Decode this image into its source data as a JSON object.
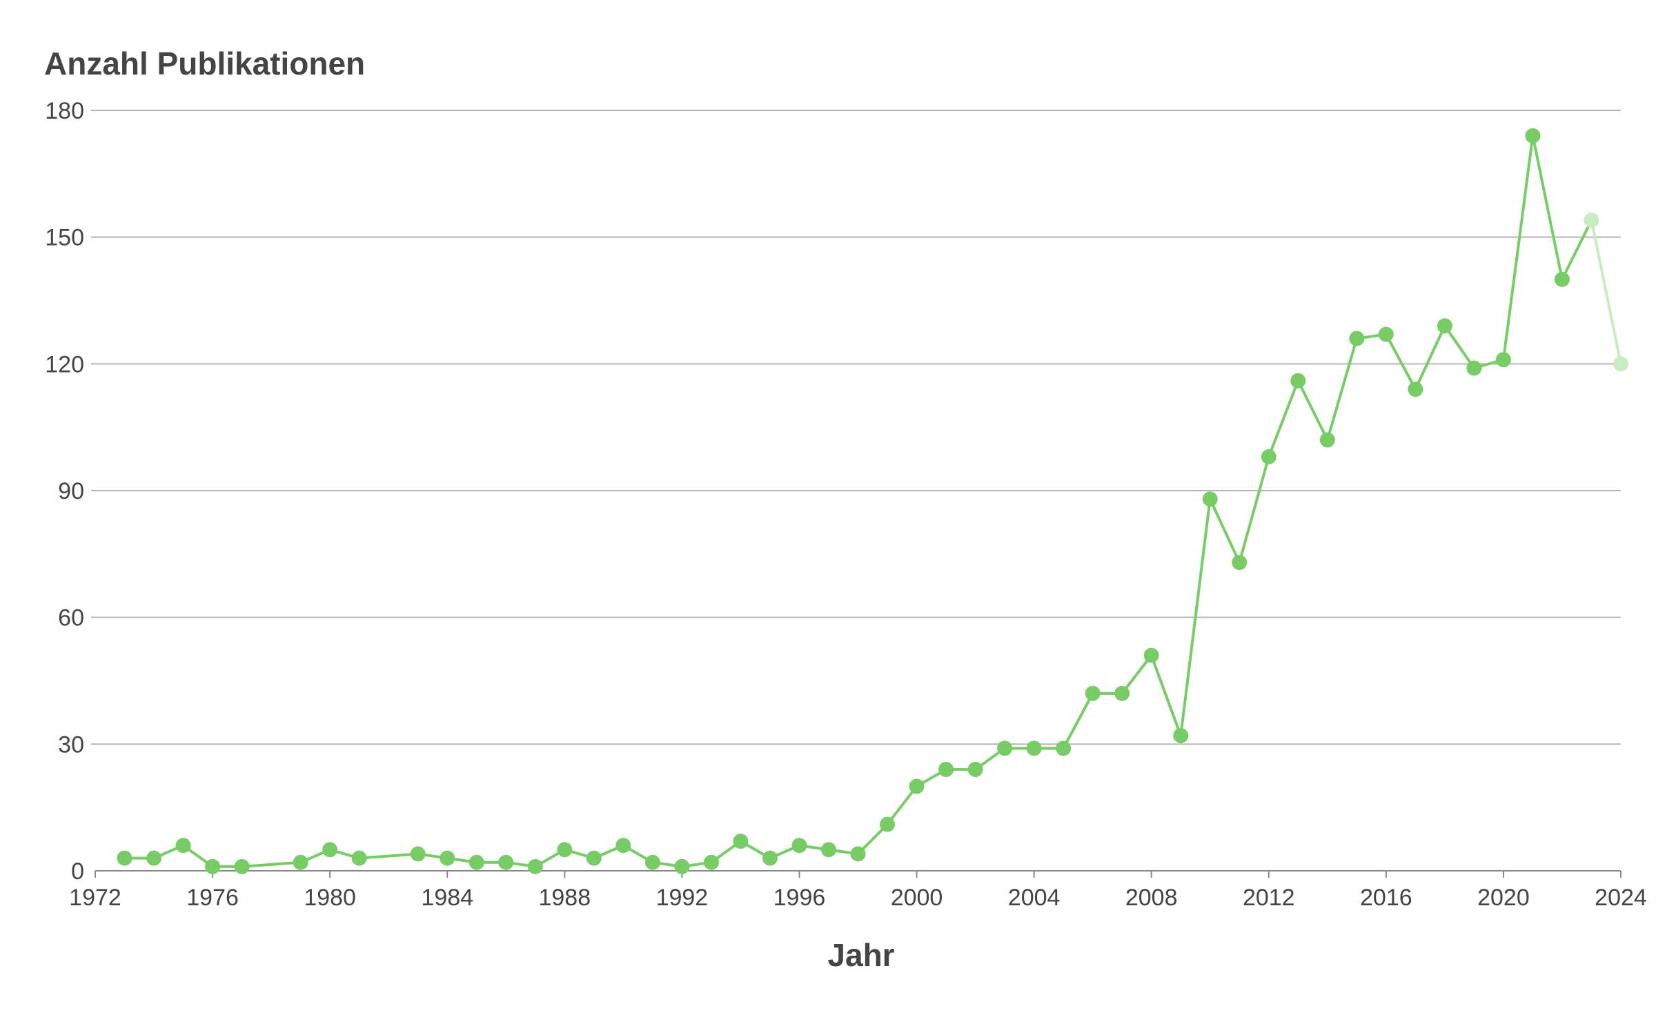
{
  "chart_data": {
    "type": "line",
    "title": "Anzahl Publikationen",
    "xlabel": "Jahr",
    "ylabel": "",
    "xlim": [
      1972,
      2024
    ],
    "ylim": [
      0,
      180
    ],
    "x_ticks": [
      1972,
      1976,
      1980,
      1984,
      1988,
      1992,
      1996,
      2000,
      2004,
      2008,
      2012,
      2016,
      2020,
      2024
    ],
    "y_ticks": [
      0,
      30,
      60,
      90,
      120,
      150,
      180
    ],
    "grid": true,
    "legend": "none",
    "color": "#77cc66",
    "projected_color": "#c8ecbe",
    "series": [
      {
        "x": [
          1973,
          1974,
          1975,
          1976,
          1977,
          1979,
          1980,
          1981,
          1983,
          1984,
          1985,
          1986,
          1987,
          1988,
          1989,
          1990,
          1991,
          1992,
          1993,
          1994,
          1995,
          1996,
          1997,
          1998,
          1999,
          2000,
          2001,
          2002,
          2003,
          2004,
          2005,
          2006,
          2007,
          2008,
          2009,
          2010,
          2011,
          2012,
          2013,
          2014,
          2015,
          2016,
          2017,
          2018,
          2019,
          2020,
          2021,
          2022,
          2023
        ],
        "y": [
          3,
          3,
          6,
          1,
          1,
          2,
          5,
          3,
          4,
          3,
          2,
          2,
          1,
          5,
          3,
          6,
          2,
          1,
          2,
          7,
          3,
          6,
          5,
          4,
          11,
          20,
          24,
          24,
          29,
          29,
          29,
          42,
          42,
          51,
          32,
          88,
          73,
          98,
          116,
          102,
          126,
          127,
          114,
          129,
          119,
          121,
          174,
          140,
          154
        ]
      },
      {
        "projected": true,
        "x": [
          2023,
          2024
        ],
        "y": [
          154,
          120
        ]
      }
    ]
  }
}
